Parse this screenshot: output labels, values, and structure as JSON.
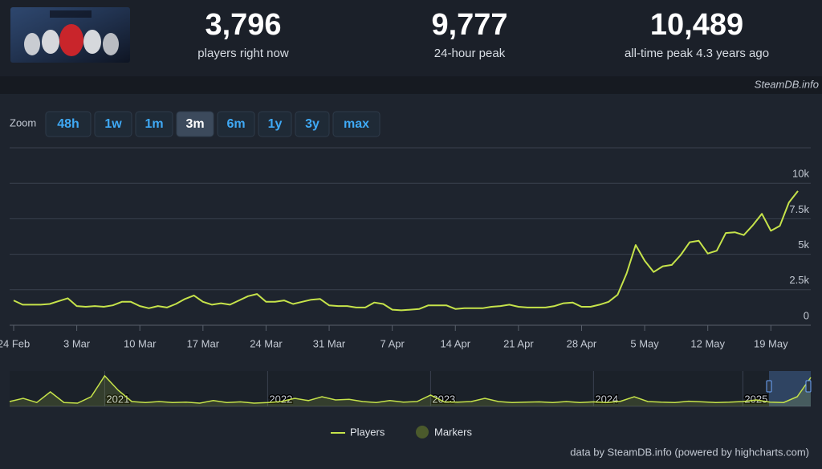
{
  "header": {
    "stats": [
      {
        "value": "3,796",
        "label": "players right now"
      },
      {
        "value": "9,777",
        "label": "24-hour peak"
      },
      {
        "value": "10,489",
        "label": "all-time peak 4.3 years ago"
      }
    ],
    "brand": "SteamDB.info"
  },
  "zoom": {
    "label": "Zoom",
    "options": [
      "48h",
      "1w",
      "1m",
      "3m",
      "6m",
      "1y",
      "3y",
      "max"
    ],
    "selected": 3
  },
  "chart_data": {
    "type": "line",
    "categories": [
      "24 Feb",
      null,
      null,
      null,
      null,
      null,
      null,
      "3 Mar",
      null,
      null,
      null,
      null,
      null,
      null,
      "10 Mar",
      null,
      null,
      null,
      null,
      null,
      null,
      "17 Mar",
      null,
      null,
      null,
      null,
      null,
      null,
      "24 Mar",
      null,
      null,
      null,
      null,
      null,
      null,
      "31 Mar",
      null,
      null,
      null,
      null,
      null,
      null,
      "7 Apr",
      null,
      null,
      null,
      null,
      null,
      null,
      "14 Apr",
      null,
      null,
      null,
      null,
      null,
      null,
      "21 Apr",
      null,
      null,
      null,
      null,
      null,
      null,
      "28 Apr",
      null,
      null,
      null,
      null,
      null,
      null,
      "5 May",
      null,
      null,
      null,
      null,
      null,
      null,
      "12 May",
      null,
      null,
      null,
      null,
      null,
      null,
      "19 May",
      null,
      null,
      null
    ],
    "series": [
      {
        "name": "Players",
        "color": "#c6e34a",
        "values": [
          1750,
          1450,
          1450,
          1450,
          1500,
          1700,
          1900,
          1350,
          1300,
          1350,
          1300,
          1400,
          1650,
          1650,
          1350,
          1200,
          1350,
          1250,
          1500,
          1850,
          2100,
          1650,
          1450,
          1550,
          1450,
          1750,
          2050,
          2200,
          1650,
          1650,
          1750,
          1500,
          1650,
          1800,
          1850,
          1400,
          1350,
          1350,
          1250,
          1250,
          1600,
          1500,
          1100,
          1050,
          1100,
          1150,
          1400,
          1400,
          1400,
          1150,
          1200,
          1200,
          1200,
          1300,
          1350,
          1450,
          1300,
          1250,
          1250,
          1250,
          1350,
          1550,
          1600,
          1300,
          1300,
          1450,
          1650,
          2150,
          3650,
          5650,
          4550,
          3750,
          4150,
          4250,
          4950,
          5850,
          5950,
          5050,
          5250,
          6500,
          6550,
          6350,
          7050,
          7850,
          6650,
          7000,
          8650,
          9450
        ]
      }
    ],
    "markers": {
      "name": "Markers",
      "color": "#4b5a2c"
    },
    "ylim": [
      0,
      12500
    ],
    "yticks": [
      0,
      {
        "value": 2500,
        "label": "2.5k"
      },
      {
        "value": 5000,
        "label": "5k"
      },
      {
        "value": 7500,
        "label": "7.5k"
      },
      {
        "value": 10000,
        "label": "10k"
      }
    ],
    "grid": true,
    "navigator": {
      "categories": [
        null,
        null,
        null,
        null,
        null,
        null,
        null,
        "2021",
        null,
        null,
        null,
        null,
        null,
        null,
        null,
        null,
        null,
        null,
        null,
        "2022",
        null,
        null,
        null,
        null,
        null,
        null,
        null,
        null,
        null,
        null,
        null,
        "2023",
        null,
        null,
        null,
        null,
        null,
        null,
        null,
        null,
        null,
        null,
        null,
        "2024",
        null,
        null,
        null,
        null,
        null,
        null,
        null,
        null,
        null,
        null,
        "2025",
        null,
        null,
        null,
        null,
        null
      ],
      "values": [
        1500,
        2500,
        1200,
        4500,
        1200,
        1000,
        3000,
        9500,
        5000,
        1500,
        1200,
        1500,
        1200,
        1300,
        1000,
        1800,
        1200,
        1400,
        1000,
        1200,
        1500,
        2500,
        1800,
        3000,
        2000,
        2200,
        1500,
        1200,
        1800,
        1300,
        1500,
        3500,
        1400,
        1300,
        1500,
        2500,
        1500,
        1200,
        1300,
        1400,
        1200,
        1500,
        1200,
        1400,
        1200,
        1600,
        3000,
        1500,
        1300,
        1200,
        1600,
        1400,
        1200,
        1300,
        1500,
        2000,
        1300,
        1200,
        3000,
        9000
      ],
      "ylim": [
        0,
        10500
      ]
    },
    "credit": "data by SteamDB.info (powered by highcharts.com)"
  }
}
